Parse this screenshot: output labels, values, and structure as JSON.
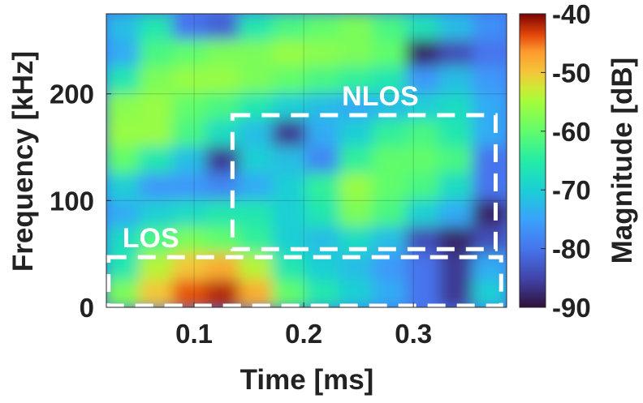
{
  "chart_data": {
    "type": "heatmap",
    "title": "",
    "xlabel": "Time [ms]",
    "ylabel": "Frequency [kHz]",
    "xlim": [
      0.02,
      0.385
    ],
    "ylim": [
      0,
      275
    ],
    "xticks": [
      0.1,
      0.2,
      0.3
    ],
    "xtick_labels": [
      "0.1",
      "0.2",
      "0.3"
    ],
    "yticks": [
      0,
      100,
      200
    ],
    "ytick_labels": [
      "0",
      "100",
      "200"
    ],
    "grid": true,
    "colorbar": {
      "label": "Magnitude [dB]",
      "range": [
        -90,
        -40
      ],
      "ticks": [
        -90,
        -80,
        -70,
        -60,
        -50,
        -40
      ],
      "tick_labels": [
        "-90",
        "-80",
        "-70",
        "-60",
        "-50",
        "-40"
      ],
      "colormap": "turbo"
    },
    "regions": [
      {
        "label": "LOS",
        "t_range": [
          0.022,
          0.38
        ],
        "f_range": [
          0,
          47
        ],
        "color": "#ffffff",
        "style": "dashed"
      },
      {
        "label": "NLOS",
        "t_range": [
          0.135,
          0.375
        ],
        "f_range": [
          53,
          180
        ],
        "color": "#ffffff",
        "style": "dashed"
      }
    ],
    "magnitude_grid": {
      "time_ms": [
        0.03,
        0.06,
        0.09,
        0.12,
        0.15,
        0.18,
        0.21,
        0.24,
        0.27,
        0.3,
        0.33,
        0.36
      ],
      "freq_khz": [
        262,
        238,
        212,
        188,
        162,
        138,
        112,
        88,
        62,
        38,
        12
      ],
      "values_db": [
        [
          -72,
          -66,
          -80,
          -82,
          -66,
          -62,
          -60,
          -58,
          -62,
          -67,
          -72,
          -77
        ],
        [
          -74,
          -62,
          -60,
          -58,
          -58,
          -56,
          -57,
          -58,
          -60,
          -88,
          -84,
          -80
        ],
        [
          -66,
          -58,
          -56,
          -56,
          -58,
          -60,
          -62,
          -64,
          -66,
          -76,
          -72,
          -76
        ],
        [
          -57,
          -56,
          -60,
          -62,
          -66,
          -70,
          -72,
          -74,
          -72,
          -70,
          -68,
          -74
        ],
        [
          -56,
          -56,
          -62,
          -68,
          -72,
          -86,
          -74,
          -70,
          -64,
          -62,
          -66,
          -74
        ],
        [
          -60,
          -66,
          -72,
          -86,
          -70,
          -72,
          -78,
          -64,
          -60,
          -60,
          -62,
          -80
        ],
        [
          -70,
          -76,
          -76,
          -78,
          -74,
          -70,
          -64,
          -56,
          -60,
          -62,
          -68,
          -80
        ],
        [
          -74,
          -70,
          -68,
          -66,
          -66,
          -70,
          -66,
          -58,
          -62,
          -70,
          -74,
          -88
        ],
        [
          -68,
          -62,
          -58,
          -60,
          -64,
          -70,
          -72,
          -68,
          -72,
          -84,
          -88,
          -84
        ],
        [
          -66,
          -54,
          -50,
          -48,
          -54,
          -66,
          -70,
          -72,
          -76,
          -80,
          -86,
          -74
        ],
        [
          -58,
          -50,
          -44,
          -42,
          -48,
          -60,
          -66,
          -70,
          -74,
          -80,
          -86,
          -70
        ]
      ]
    }
  }
}
